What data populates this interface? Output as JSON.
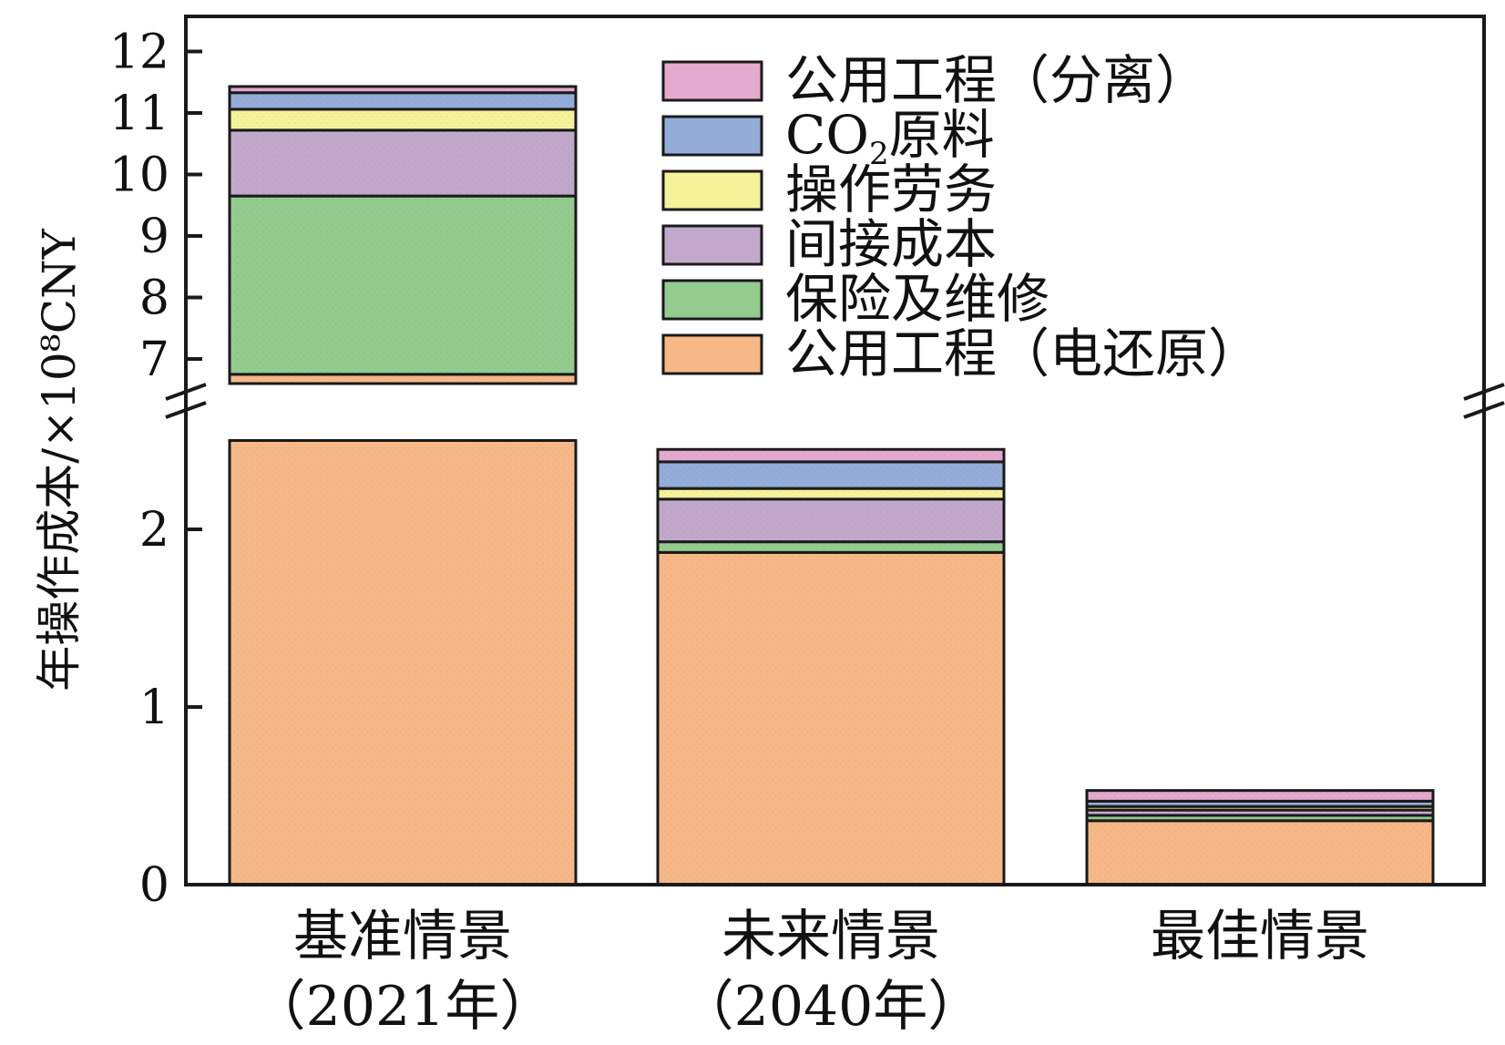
{
  "chart_data": {
    "type": "bar",
    "stacked": true,
    "broken_y_axis": true,
    "ylabel": "年操作成本/×10⁸CNY",
    "categories": [
      {
        "line1": "基准情景",
        "line2": "（2021年）"
      },
      {
        "line1": "未来情景",
        "line2": "（2040年）"
      },
      {
        "line1": "最佳情景",
        "line2": ""
      }
    ],
    "y_ticks_lower": [
      "0",
      "1",
      "2"
    ],
    "y_ticks_upper": [
      "7",
      "8",
      "9",
      "10",
      "11",
      "12"
    ],
    "ylim_lower": [
      0,
      2.5
    ],
    "ylim_upper": [
      6.6,
      12.5
    ],
    "series": [
      {
        "name": "公用工程（电还原）",
        "color": "#F6B887",
        "values": [
          6.75,
          1.87,
          0.36
        ]
      },
      {
        "name": "保险及维修",
        "color": "#93CC8E",
        "values": [
          2.9,
          0.06,
          0.03
        ]
      },
      {
        "name": "间接成本",
        "color": "#C2A9CB",
        "values": [
          1.07,
          0.24,
          0.03
        ]
      },
      {
        "name": "操作劳务",
        "color": "#F5F29A",
        "values": [
          0.34,
          0.06,
          0.02
        ]
      },
      {
        "name": "CO₂原料",
        "color": "#93ACD8",
        "values": [
          0.27,
          0.15,
          0.03
        ]
      },
      {
        "name": "公用工程（分离）",
        "color": "#E4A9CF",
        "values": [
          0.1,
          0.07,
          0.06
        ]
      }
    ],
    "legend": {
      "placement": "top-right",
      "order": [
        5,
        4,
        3,
        2,
        1,
        0
      ],
      "labels": [
        {
          "main": "公用工程（分离）",
          "sub": "",
          "rest": ""
        },
        {
          "main": "CO",
          "sub": "2",
          "rest": "原料"
        },
        {
          "main": "操作劳务",
          "sub": "",
          "rest": ""
        },
        {
          "main": "间接成本",
          "sub": "",
          "rest": ""
        },
        {
          "main": "保险及维修",
          "sub": "",
          "rest": ""
        },
        {
          "main": "公用工程（电还原）",
          "sub": "",
          "rest": ""
        }
      ]
    }
  }
}
